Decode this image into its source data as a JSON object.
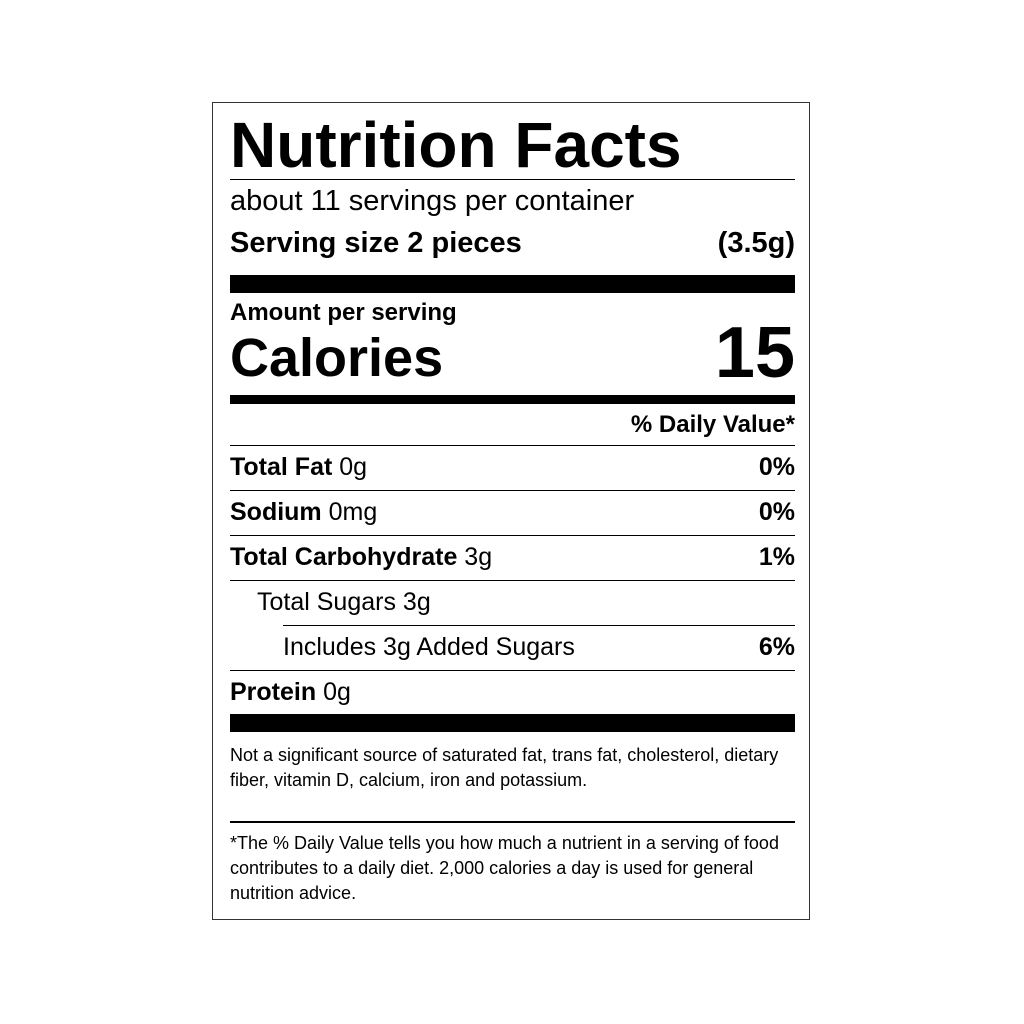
{
  "title": "Nutrition Facts",
  "servings_per_container": "about 11 servings per container",
  "serving_size_label": "Serving size 2 pieces",
  "serving_size_value": "(3.5g)",
  "amount_per_serving": "Amount per serving",
  "calories_label": "Calories",
  "calories_value": "15",
  "daily_value_header": "% Daily Value*",
  "nutrients": [
    {
      "name": "Total Fat",
      "amount": "0g",
      "dv": "0%"
    },
    {
      "name": "Sodium",
      "amount": "0mg",
      "dv": "0%"
    },
    {
      "name": "Total Carbohydrate",
      "amount": "3g",
      "dv": "1%"
    },
    {
      "name": "Total Sugars 3g",
      "amount": "",
      "dv": ""
    },
    {
      "name": "Includes 3g Added Sugars",
      "amount": "",
      "dv": "6%"
    },
    {
      "name": "Protein",
      "amount": "0g",
      "dv": ""
    }
  ],
  "not_significant": "Not a significant source of saturated fat, trans fat, cholesterol, dietary fiber, vitamin D, calcium, iron and potassium.",
  "footnote": "*The % Daily Value tells you how much a nutrient in a serving of food contributes to a daily diet. 2,000 calories a day is used for general nutrition advice."
}
